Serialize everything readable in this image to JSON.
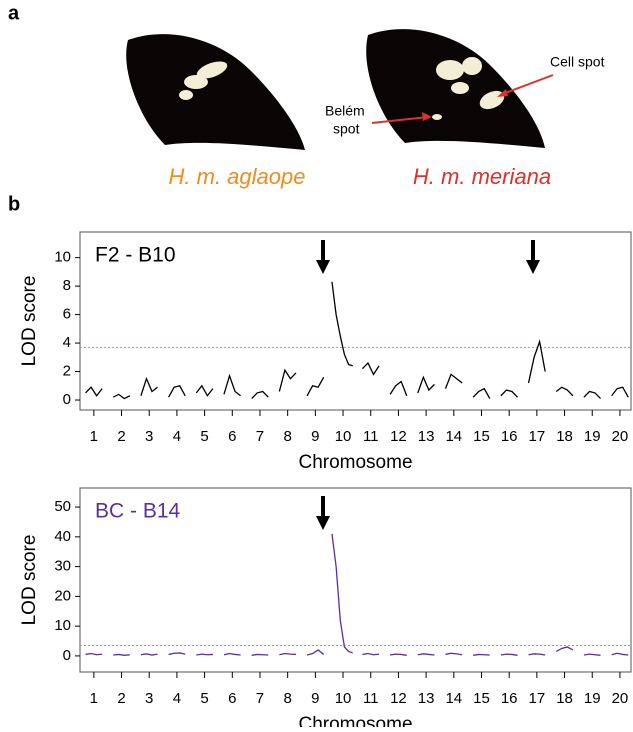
{
  "figure": {
    "panel_a": "a",
    "panel_b": "b",
    "wings": [
      {
        "label": "H. m. aglaope"
      },
      {
        "label": "H. m. meriana"
      }
    ],
    "annotations": {
      "cell_spot": "Cell spot",
      "belem_spot": [
        "Belém",
        "spot"
      ]
    }
  },
  "chart_data": [
    {
      "type": "line",
      "title": "F2 - B10",
      "x_label": "Chromosome",
      "y_label": "LOD score",
      "color": "#000000",
      "threshold": 3.7,
      "threshold_color": "#f08060",
      "xlim": [
        0.5,
        20.4
      ],
      "ylim": [
        -0.7,
        11.8
      ],
      "xticks": [
        1,
        2,
        3,
        4,
        5,
        6,
        7,
        8,
        9,
        10,
        11,
        12,
        13,
        14,
        15,
        16,
        17,
        18,
        19,
        20
      ],
      "yticks": [
        0,
        2,
        4,
        6,
        8,
        10
      ],
      "x": [
        0.7,
        0.9,
        1.1,
        1.3,
        1.5,
        1.7,
        1.9,
        2.1,
        2.3,
        2.5,
        2.7,
        2.9,
        3.1,
        3.3,
        3.5,
        3.7,
        3.9,
        4.1,
        4.3,
        4.5,
        4.7,
        4.9,
        5.1,
        5.3,
        5.5,
        5.7,
        5.9,
        6.1,
        6.3,
        6.5,
        6.7,
        6.9,
        7.1,
        7.3,
        7.5,
        7.7,
        7.9,
        8.1,
        8.3,
        8.5,
        8.7,
        8.9,
        9.1,
        9.3,
        9.5,
        9.6,
        9.75,
        9.9,
        10.05,
        10.2,
        10.35,
        10.5,
        10.7,
        10.9,
        11.1,
        11.3,
        11.5,
        11.7,
        11.9,
        12.1,
        12.3,
        12.5,
        12.7,
        12.9,
        13.1,
        13.3,
        13.5,
        13.7,
        13.9,
        14.1,
        14.3,
        14.5,
        14.7,
        14.9,
        15.1,
        15.3,
        15.5,
        15.7,
        15.9,
        16.1,
        16.3,
        16.5,
        16.7,
        16.9,
        17.1,
        17.3,
        17.5,
        17.7,
        17.9,
        18.1,
        18.3,
        18.5,
        18.7,
        18.9,
        19.1,
        19.3,
        19.5,
        19.7,
        19.9,
        20.1,
        20.3
      ],
      "values": [
        0.5,
        0.9,
        0.3,
        0.8,
        null,
        0.2,
        0.4,
        0.1,
        0.3,
        null,
        0.3,
        1.5,
        0.6,
        0.9,
        null,
        0.2,
        0.9,
        1.0,
        0.3,
        null,
        0.5,
        1.0,
        0.3,
        0.8,
        null,
        0.4,
        1.7,
        0.6,
        0.3,
        null,
        0.1,
        0.5,
        0.6,
        0.2,
        null,
        0.6,
        2.1,
        1.5,
        1.9,
        null,
        0.3,
        1.0,
        0.9,
        1.6,
        null,
        8.3,
        6.0,
        4.5,
        3.2,
        2.5,
        2.4,
        null,
        2.2,
        2.6,
        1.8,
        2.4,
        null,
        0.4,
        1.0,
        1.3,
        0.3,
        null,
        0.5,
        1.6,
        0.7,
        1.1,
        null,
        0.8,
        1.8,
        1.5,
        1.2,
        null,
        0.2,
        0.6,
        0.8,
        0.1,
        null,
        0.3,
        0.7,
        0.6,
        0.2,
        null,
        1.2,
        3.0,
        4.1,
        2.0,
        null,
        0.6,
        0.9,
        0.7,
        0.3,
        null,
        0.2,
        0.6,
        0.5,
        0.1,
        null,
        0.3,
        0.8,
        0.9,
        0.2
      ]
    },
    {
      "type": "line",
      "title": "BC - B14",
      "x_label": "Chromosome",
      "y_label": "LOD score",
      "color": "#5b2fa0",
      "threshold": 3.5,
      "threshold_color": "#f08060",
      "xlim": [
        0.5,
        20.4
      ],
      "ylim": [
        -5.4,
        56.4
      ],
      "xticks": [
        1,
        2,
        3,
        4,
        5,
        6,
        7,
        8,
        9,
        10,
        11,
        12,
        13,
        14,
        15,
        16,
        17,
        18,
        19,
        20
      ],
      "yticks": [
        0,
        10,
        20,
        30,
        40,
        50
      ],
      "x": [
        0.7,
        0.9,
        1.1,
        1.3,
        1.5,
        1.7,
        1.9,
        2.1,
        2.3,
        2.5,
        2.7,
        2.9,
        3.1,
        3.3,
        3.5,
        3.7,
        3.9,
        4.1,
        4.3,
        4.5,
        4.7,
        4.9,
        5.1,
        5.3,
        5.5,
        5.7,
        5.9,
        6.1,
        6.3,
        6.5,
        6.7,
        6.9,
        7.1,
        7.3,
        7.5,
        7.7,
        7.9,
        8.1,
        8.3,
        8.5,
        8.7,
        8.9,
        9.1,
        9.3,
        9.5,
        9.6,
        9.75,
        9.9,
        10.05,
        10.2,
        10.35,
        10.5,
        10.7,
        10.9,
        11.1,
        11.3,
        11.5,
        11.7,
        11.9,
        12.1,
        12.3,
        12.5,
        12.7,
        12.9,
        13.1,
        13.3,
        13.5,
        13.7,
        13.9,
        14.1,
        14.3,
        14.5,
        14.7,
        14.9,
        15.1,
        15.3,
        15.5,
        15.7,
        15.9,
        16.1,
        16.3,
        16.5,
        16.7,
        16.9,
        17.1,
        17.3,
        17.5,
        17.7,
        17.9,
        18.1,
        18.3,
        18.5,
        18.7,
        18.9,
        19.1,
        19.3,
        19.5,
        19.7,
        19.9,
        20.1,
        20.3
      ],
      "values": [
        0.5,
        0.8,
        0.4,
        0.6,
        null,
        0.3,
        0.5,
        0.2,
        0.4,
        null,
        0.4,
        0.7,
        0.3,
        0.6,
        null,
        0.5,
        0.9,
        1.0,
        0.6,
        null,
        0.3,
        0.6,
        0.4,
        0.5,
        null,
        0.4,
        0.8,
        0.5,
        0.3,
        null,
        0.2,
        0.5,
        0.4,
        0.3,
        null,
        0.4,
        0.8,
        0.6,
        0.5,
        null,
        0.3,
        0.8,
        2.0,
        0.5,
        null,
        41,
        30,
        12,
        3,
        1.5,
        1.0,
        null,
        0.5,
        0.8,
        0.4,
        0.6,
        null,
        0.3,
        0.6,
        0.5,
        0.2,
        null,
        0.4,
        0.7,
        0.5,
        0.3,
        null,
        0.5,
        0.9,
        0.7,
        0.4,
        null,
        0.2,
        0.5,
        0.4,
        0.3,
        null,
        0.3,
        0.6,
        0.5,
        0.2,
        null,
        0.4,
        0.7,
        0.6,
        0.3,
        null,
        1.5,
        2.5,
        3.0,
        2.0,
        null,
        0.3,
        0.6,
        0.4,
        0.2,
        null,
        0.4,
        0.9,
        0.5,
        0.3
      ]
    }
  ]
}
